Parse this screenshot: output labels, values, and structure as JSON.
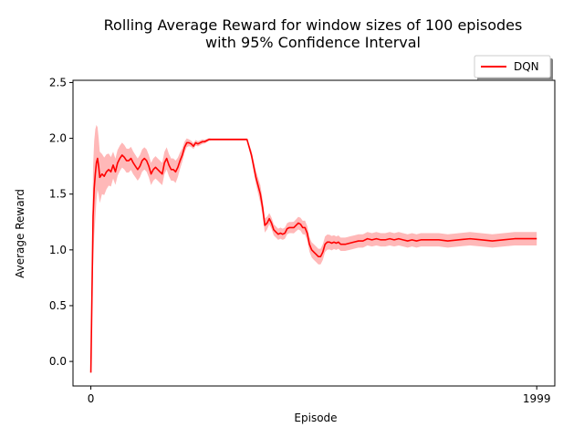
{
  "chart_data": {
    "type": "line",
    "title_line1": "Rolling Average Reward for window sizes of 100 episodes",
    "title_line2": "with 95% Confidence Interval",
    "xlabel": "Episode",
    "ylabel": "Average Reward",
    "xlim": [
      -80,
      2080
    ],
    "ylim": [
      -0.22,
      2.52
    ],
    "xticks": [
      0,
      1999
    ],
    "xtick_labels": [
      "0",
      "1999"
    ],
    "yticks": [
      0.0,
      0.5,
      1.0,
      1.5,
      2.0,
      2.5
    ],
    "ytick_labels": [
      "0.0",
      "0.5",
      "1.0",
      "1.5",
      "2.0",
      "2.5"
    ],
    "grid": false,
    "legend_position": "top-right",
    "series": [
      {
        "name": "DQN",
        "color": "#ff0000",
        "band_color": "#ff0000",
        "points": [
          [
            0,
            -0.1
          ],
          [
            5,
            0.6
          ],
          [
            10,
            1.3
          ],
          [
            15,
            1.55
          ],
          [
            20,
            1.68
          ],
          [
            25,
            1.78
          ],
          [
            30,
            1.82
          ],
          [
            35,
            1.75
          ],
          [
            40,
            1.65
          ],
          [
            50,
            1.68
          ],
          [
            60,
            1.66
          ],
          [
            70,
            1.7
          ],
          [
            80,
            1.72
          ],
          [
            90,
            1.7
          ],
          [
            100,
            1.76
          ],
          [
            110,
            1.7
          ],
          [
            120,
            1.78
          ],
          [
            130,
            1.82
          ],
          [
            140,
            1.85
          ],
          [
            150,
            1.83
          ],
          [
            160,
            1.8
          ],
          [
            170,
            1.8
          ],
          [
            180,
            1.82
          ],
          [
            190,
            1.78
          ],
          [
            200,
            1.75
          ],
          [
            210,
            1.72
          ],
          [
            220,
            1.75
          ],
          [
            230,
            1.8
          ],
          [
            240,
            1.82
          ],
          [
            250,
            1.8
          ],
          [
            260,
            1.75
          ],
          [
            270,
            1.68
          ],
          [
            280,
            1.72
          ],
          [
            290,
            1.74
          ],
          [
            300,
            1.72
          ],
          [
            310,
            1.7
          ],
          [
            320,
            1.68
          ],
          [
            330,
            1.78
          ],
          [
            340,
            1.82
          ],
          [
            350,
            1.76
          ],
          [
            360,
            1.72
          ],
          [
            370,
            1.72
          ],
          [
            380,
            1.7
          ],
          [
            390,
            1.74
          ],
          [
            400,
            1.8
          ],
          [
            410,
            1.85
          ],
          [
            420,
            1.92
          ],
          [
            430,
            1.96
          ],
          [
            440,
            1.96
          ],
          [
            450,
            1.95
          ],
          [
            460,
            1.93
          ],
          [
            470,
            1.96
          ],
          [
            480,
            1.95
          ],
          [
            490,
            1.96
          ],
          [
            500,
            1.97
          ],
          [
            510,
            1.97
          ],
          [
            520,
            1.98
          ],
          [
            530,
            1.99
          ],
          [
            540,
            1.99
          ],
          [
            560,
            1.99
          ],
          [
            580,
            1.99
          ],
          [
            600,
            1.99
          ],
          [
            620,
            1.99
          ],
          [
            640,
            1.99
          ],
          [
            660,
            1.99
          ],
          [
            680,
            1.99
          ],
          [
            700,
            1.99
          ],
          [
            720,
            1.85
          ],
          [
            740,
            1.65
          ],
          [
            760,
            1.5
          ],
          [
            770,
            1.38
          ],
          [
            780,
            1.22
          ],
          [
            790,
            1.24
          ],
          [
            800,
            1.28
          ],
          [
            810,
            1.24
          ],
          [
            820,
            1.18
          ],
          [
            830,
            1.16
          ],
          [
            840,
            1.14
          ],
          [
            850,
            1.15
          ],
          [
            860,
            1.14
          ],
          [
            870,
            1.15
          ],
          [
            880,
            1.19
          ],
          [
            890,
            1.2
          ],
          [
            900,
            1.2
          ],
          [
            910,
            1.2
          ],
          [
            920,
            1.22
          ],
          [
            930,
            1.24
          ],
          [
            940,
            1.23
          ],
          [
            950,
            1.2
          ],
          [
            960,
            1.2
          ],
          [
            970,
            1.15
          ],
          [
            980,
            1.05
          ],
          [
            990,
            1.0
          ],
          [
            1000,
            0.98
          ],
          [
            1010,
            0.96
          ],
          [
            1020,
            0.94
          ],
          [
            1030,
            0.94
          ],
          [
            1040,
            0.98
          ],
          [
            1050,
            1.05
          ],
          [
            1060,
            1.07
          ],
          [
            1070,
            1.07
          ],
          [
            1080,
            1.06
          ],
          [
            1090,
            1.07
          ],
          [
            1100,
            1.06
          ],
          [
            1110,
            1.07
          ],
          [
            1120,
            1.05
          ],
          [
            1140,
            1.05
          ],
          [
            1160,
            1.06
          ],
          [
            1180,
            1.07
          ],
          [
            1200,
            1.08
          ],
          [
            1220,
            1.08
          ],
          [
            1240,
            1.1
          ],
          [
            1260,
            1.09
          ],
          [
            1280,
            1.1
          ],
          [
            1300,
            1.09
          ],
          [
            1320,
            1.09
          ],
          [
            1340,
            1.1
          ],
          [
            1360,
            1.09
          ],
          [
            1380,
            1.1
          ],
          [
            1400,
            1.09
          ],
          [
            1420,
            1.08
          ],
          [
            1440,
            1.09
          ],
          [
            1460,
            1.08
          ],
          [
            1480,
            1.09
          ],
          [
            1500,
            1.09
          ],
          [
            1530,
            1.09
          ],
          [
            1560,
            1.09
          ],
          [
            1600,
            1.08
          ],
          [
            1650,
            1.09
          ],
          [
            1700,
            1.1
          ],
          [
            1750,
            1.09
          ],
          [
            1800,
            1.08
          ],
          [
            1850,
            1.09
          ],
          [
            1900,
            1.1
          ],
          [
            1950,
            1.1
          ],
          [
            1999,
            1.1
          ]
        ],
        "band_halfwidth": [
          [
            0,
            0.0
          ],
          [
            10,
            0.45
          ],
          [
            20,
            0.4
          ],
          [
            30,
            0.28
          ],
          [
            50,
            0.18
          ],
          [
            100,
            0.12
          ],
          [
            200,
            0.1
          ],
          [
            300,
            0.1
          ],
          [
            380,
            0.1
          ],
          [
            410,
            0.06
          ],
          [
            440,
            0.03
          ],
          [
            500,
            0.02
          ],
          [
            540,
            0.01
          ],
          [
            700,
            0.01
          ],
          [
            720,
            0.04
          ],
          [
            760,
            0.08
          ],
          [
            800,
            0.05
          ],
          [
            900,
            0.05
          ],
          [
            1000,
            0.07
          ],
          [
            1050,
            0.07
          ],
          [
            1100,
            0.06
          ],
          [
            1999,
            0.06
          ]
        ]
      }
    ]
  }
}
